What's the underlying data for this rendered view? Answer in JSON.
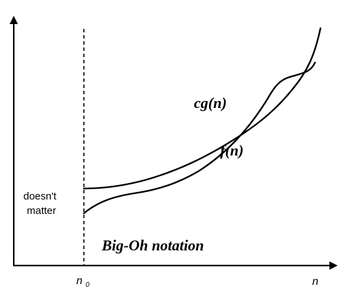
{
  "diagram": {
    "title": "Big-Oh notation",
    "threshold": {
      "symbol": "n",
      "subscript": "0"
    },
    "x_axis_label": "n",
    "left_region_label_line1": "doesn't",
    "left_region_label_line2": "matter",
    "curves": [
      {
        "name": "cg(n)"
      },
      {
        "name": "f(n)"
      }
    ],
    "colors": {
      "ink": "#000000",
      "background": "#ffffff"
    }
  }
}
